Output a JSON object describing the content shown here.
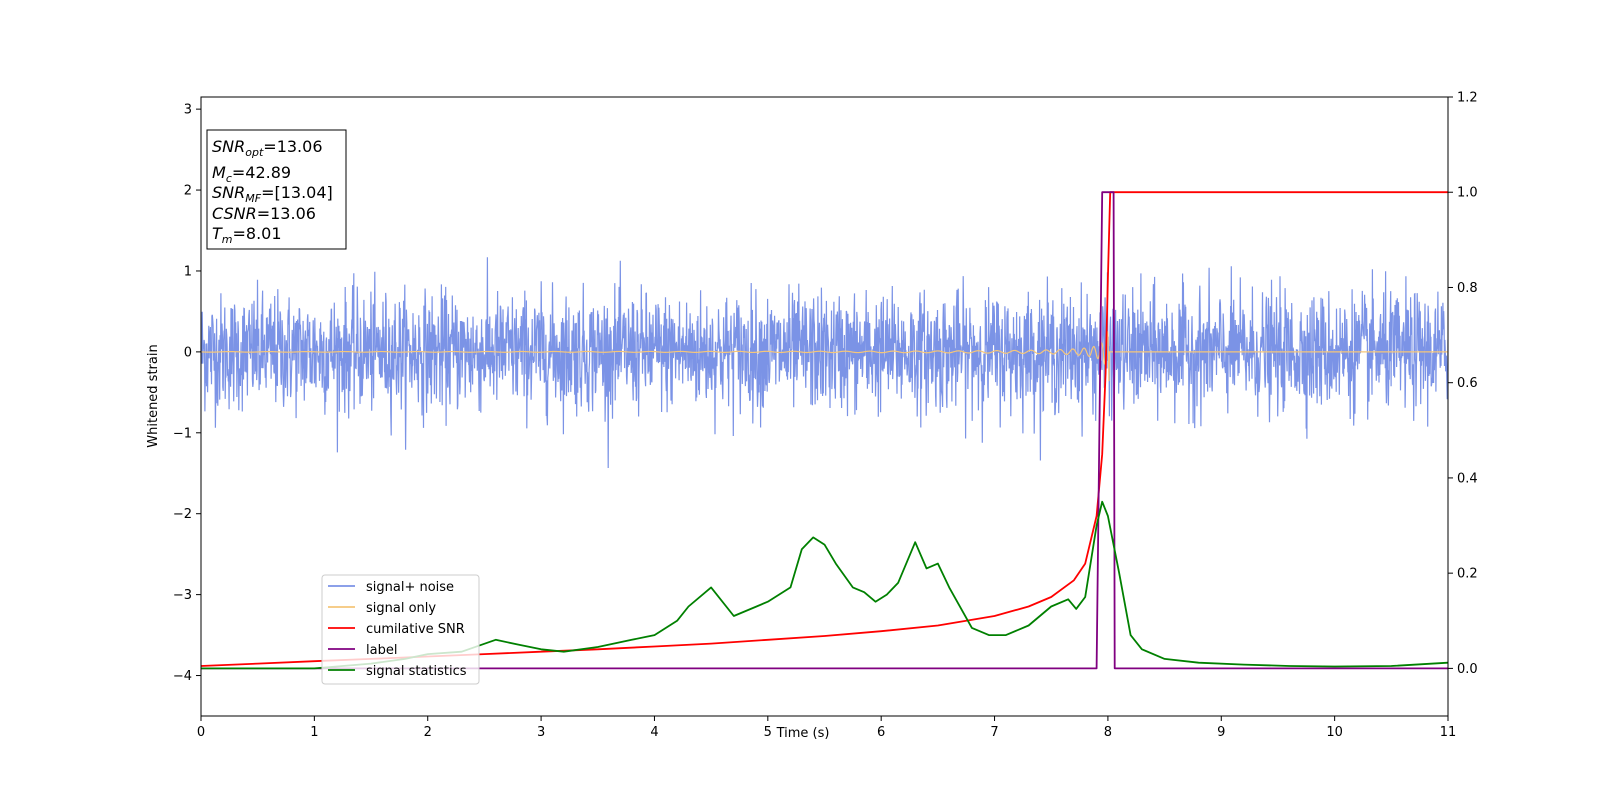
{
  "chart_data": {
    "type": "line",
    "xlabel": "Time (s)",
    "ylabel": "Whitened strain",
    "xlim": [
      0,
      11
    ],
    "ylim": [
      -4.5,
      3.15
    ],
    "y2lim": [
      -0.1,
      1.2
    ],
    "x_ticks": [
      "0",
      "1",
      "2",
      "3",
      "4",
      "5",
      "6",
      "7",
      "8",
      "9",
      "10",
      "11"
    ],
    "y_ticks": [
      "3",
      "2",
      "1",
      "0",
      "−1",
      "−2",
      "−3",
      "−4"
    ],
    "y2_ticks": [
      "1.2",
      "1.0",
      "0.8",
      "0.6",
      "0.4",
      "0.2",
      "0.0"
    ],
    "grid": false,
    "legend_position": "lower-left",
    "info_box": {
      "position": "top-left",
      "lines": [
        {
          "sym": "SNR",
          "sub": "opt",
          "value": "=13.06"
        },
        {
          "sym": "M",
          "sub": "c",
          "value": "=42.89"
        },
        {
          "sym": "SNR",
          "sub": "MF",
          "value": "=[13.04]"
        },
        {
          "sym": "CSNR",
          "sub": "",
          "value": "=13.06"
        },
        {
          "sym": "T",
          "sub": "m",
          "value": "=8.01"
        }
      ]
    },
    "series": [
      {
        "name": "signal+ noise",
        "axis": "left",
        "color": "#7b93e6",
        "description_envelope": {
          "typical_amplitude": 0.85,
          "peak_values": [
            1.6,
            1.58,
            -1.58,
            -1.52,
            -1.52,
            1.4
          ]
        }
      },
      {
        "name": "signal only",
        "axis": "left",
        "color": "#f5c67a",
        "chirp": {
          "start_time": 0,
          "merger_time": 8.01,
          "max_amplitude": 0.45
        }
      },
      {
        "name": "cumilative SNR",
        "axis": "right",
        "color": "#ff0000",
        "x": [
          0,
          0.5,
          1,
          1.5,
          2,
          2.5,
          3,
          3.5,
          4,
          4.5,
          5,
          5.5,
          6,
          6.5,
          7,
          7.3,
          7.5,
          7.7,
          7.8,
          7.9,
          7.95,
          7.98,
          8.0,
          8.02,
          11
        ],
        "values": [
          0.005,
          0.01,
          0.015,
          0.02,
          0.025,
          0.03,
          0.035,
          0.04,
          0.046,
          0.052,
          0.06,
          0.068,
          0.078,
          0.09,
          0.11,
          0.13,
          0.15,
          0.185,
          0.22,
          0.32,
          0.45,
          0.62,
          0.82,
          1.0,
          1.0
        ]
      },
      {
        "name": "label",
        "axis": "right",
        "color": "#800080",
        "x": [
          0,
          7.9,
          7.95,
          8.05,
          8.06,
          11
        ],
        "values": [
          0,
          0,
          1,
          1,
          0,
          0
        ]
      },
      {
        "name": "signal statistics",
        "axis": "right",
        "color": "#008000",
        "x": [
          0,
          0.5,
          1,
          1.5,
          1.8,
          2,
          2.3,
          2.6,
          2.8,
          3.0,
          3.2,
          3.5,
          3.8,
          4.0,
          4.2,
          4.3,
          4.5,
          4.7,
          4.9,
          5.0,
          5.2,
          5.3,
          5.4,
          5.5,
          5.6,
          5.75,
          5.85,
          5.95,
          6.05,
          6.15,
          6.3,
          6.4,
          6.5,
          6.6,
          6.8,
          6.95,
          7.1,
          7.3,
          7.5,
          7.65,
          7.72,
          7.8,
          7.9,
          7.95,
          8.0,
          8.1,
          8.2,
          8.3,
          8.5,
          8.8,
          9.2,
          9.6,
          10.0,
          10.5,
          11.0
        ],
        "values": [
          0.0,
          0.0,
          0.0,
          0.01,
          0.02,
          0.03,
          0.035,
          0.06,
          0.05,
          0.04,
          0.035,
          0.045,
          0.06,
          0.07,
          0.1,
          0.13,
          0.17,
          0.11,
          0.13,
          0.14,
          0.17,
          0.25,
          0.275,
          0.26,
          0.22,
          0.17,
          0.16,
          0.14,
          0.155,
          0.18,
          0.265,
          0.21,
          0.22,
          0.17,
          0.085,
          0.07,
          0.07,
          0.09,
          0.13,
          0.145,
          0.125,
          0.15,
          0.3,
          0.35,
          0.32,
          0.2,
          0.07,
          0.04,
          0.02,
          0.012,
          0.008,
          0.005,
          0.004,
          0.005,
          0.012
        ]
      }
    ]
  }
}
